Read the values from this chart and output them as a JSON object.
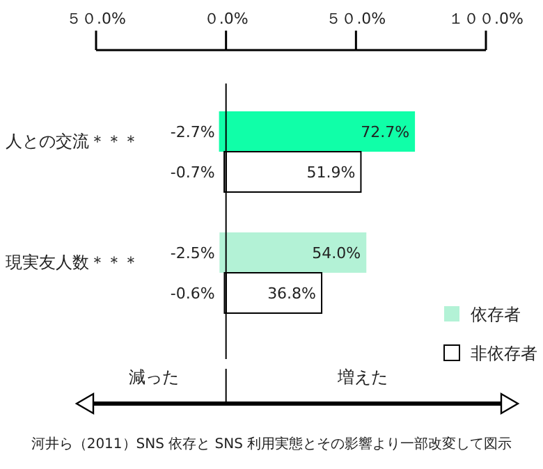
{
  "chart_data": {
    "type": "bar",
    "orientation": "horizontal",
    "stacked": true,
    "categories": [
      "人との交流＊＊＊",
      null,
      "現実友人数＊＊＊",
      null
    ],
    "series": [
      {
        "name": "依存者",
        "colors": [
          "#10ffa8",
          null,
          "#b3f2d6",
          null
        ],
        "values": [
          72.7,
          null,
          54.0,
          null
        ],
        "value_labels": [
          "72.7%",
          null,
          "54.0%",
          null
        ]
      },
      {
        "colors": [
          "#10ffa8",
          null,
          "#b3f2d6",
          null
        ],
        "values": [
          -2.7,
          null,
          -2.5,
          null
        ],
        "value_labels": [
          "-2.7%",
          null,
          "-2.5%",
          null
        ]
      },
      {
        "name": "非依存者",
        "color": "#ffffff",
        "values": [
          null,
          51.9,
          null,
          36.8
        ],
        "value_labels": [
          null,
          "51.9%",
          null,
          "36.8%"
        ]
      },
      {
        "color": "#ffffff",
        "values": [
          null,
          -0.7,
          null,
          -0.6
        ],
        "value_labels": [
          null,
          "-0.7%",
          null,
          "-0.6%"
        ]
      }
    ],
    "xlim": [
      -50,
      100
    ],
    "xticks": [
      {
        "value": -50,
        "label": "５０.0%"
      },
      {
        "value": 0,
        "label": "０.0%"
      },
      {
        "value": 50,
        "label": "５０.0%"
      },
      {
        "value": 100,
        "label": "１００.0%"
      }
    ],
    "legend": "bottom right",
    "annotations": [
      "減った",
      "増えた",
      "河井ら（2011）SNS 依存と SNS 利用実態とその影響より一部改変して図示"
    ]
  }
}
